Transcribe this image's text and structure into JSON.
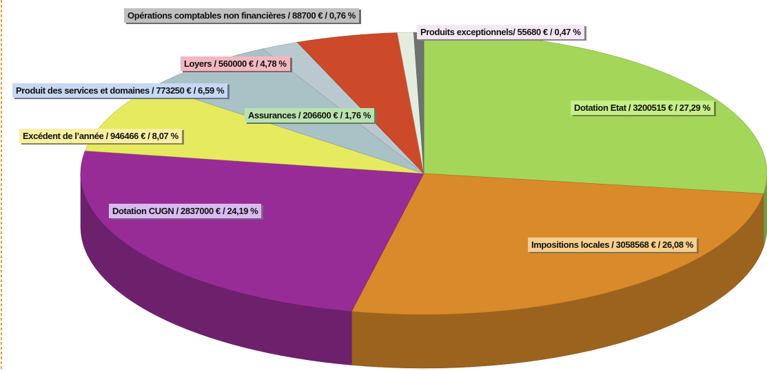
{
  "chart_data": {
    "type": "pie",
    "categories": [
      "Dotation Etat / 3200515 € / 27,29 %",
      "Impositions locales / 3058568 € / 26,08 %",
      "Dotation CUGN / 2837000 € / 24,19 %",
      "Excédent de l’année / 946466 € / 8,07 %",
      "Produit des services et domaines / 773250 € / 6,59 %",
      "Assurances / 206600 € / 1,76 %",
      "Loyers / 560000 € / 4,78 %",
      "Opérations comptables non financières / 88700 € / 0,76 %",
      "Produits exceptionnels/ 55680 € / 0,47 %"
    ],
    "values": [
      27.29,
      26.08,
      24.19,
      8.07,
      6.59,
      1.76,
      4.78,
      0.76,
      0.47
    ],
    "colors": [
      "#a4d65a",
      "#d98a2a",
      "#982c96",
      "#e6ea5e",
      "#a8c2c6",
      "#b9c9cf",
      "#cc4a2a",
      "#e4ece0",
      "#6f7370"
    ],
    "label_colors": [
      "#c6ef86",
      "#f7cf8e",
      "#d9baf0",
      "#f8efa2",
      "#c6d8f2",
      "#b9e2b0",
      "#f2b8c2",
      "#bfbfbf",
      "#f5e8f5"
    ]
  }
}
